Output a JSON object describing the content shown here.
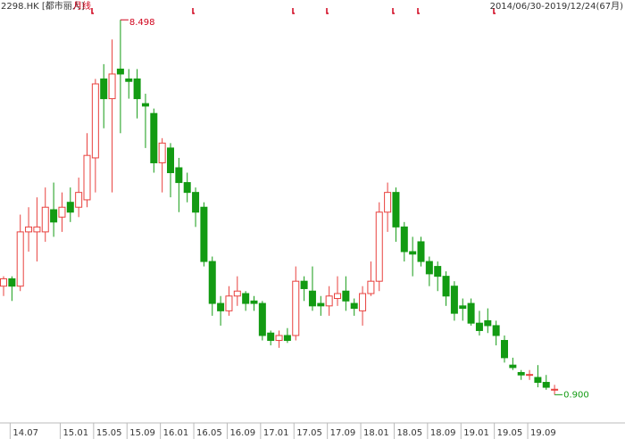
{
  "chart_data": {
    "type": "candlestick",
    "title": "2298.HK [都市丽人]",
    "subtitle": "月线",
    "range_label": "2014/06/30-2019/12/24(67月)",
    "up_color": "#e8413e",
    "down_color": "#139b13",
    "ylim": [
      0.4,
      8.9
    ],
    "categories": [
      null,
      "14.07",
      null,
      null,
      null,
      null,
      null,
      "15.01",
      null,
      null,
      null,
      "15.05",
      null,
      null,
      null,
      "15.09",
      null,
      null,
      null,
      "16.01",
      null,
      null,
      null,
      "16.05",
      null,
      null,
      null,
      "16.09",
      null,
      null,
      null,
      "17.01",
      null,
      null,
      null,
      "17.05",
      null,
      null,
      null,
      "17.09",
      null,
      null,
      null,
      "18.01",
      null,
      null,
      null,
      "18.05",
      null,
      null,
      null,
      "18.09",
      null,
      null,
      null,
      "19.01",
      null,
      null,
      null,
      "19.05",
      null,
      null,
      null,
      "19.09",
      null,
      null,
      null
    ],
    "open": [
      3.1,
      3.25,
      3.1,
      4.2,
      4.2,
      4.2,
      4.65,
      4.5,
      4.8,
      4.7,
      4.85,
      5.7,
      7.3,
      6.9,
      7.5,
      7.3,
      7.3,
      6.8,
      6.6,
      5.6,
      5.9,
      5.5,
      5.2,
      5.0,
      4.7,
      3.6,
      2.75,
      2.6,
      2.9,
      2.95,
      2.8,
      2.75,
      2.15,
      2.0,
      2.1,
      2.1,
      3.2,
      3.0,
      2.75,
      2.7,
      2.85,
      3.0,
      2.75,
      2.6,
      2.95,
      3.2,
      4.6,
      5.0,
      4.3,
      3.8,
      4.0,
      3.6,
      3.5,
      3.3,
      3.1,
      2.7,
      2.75,
      2.35,
      2.4,
      2.3,
      2.0,
      1.5,
      1.35,
      1.3,
      1.25,
      1.15,
      1.0
    ],
    "high": [
      3.3,
      3.3,
      4.55,
      4.7,
      4.9,
      5.1,
      5.2,
      5.0,
      5.1,
      5.3,
      6.2,
      7.3,
      7.6,
      8.1,
      8.498,
      7.5,
      7.5,
      7.0,
      6.7,
      6.1,
      6.0,
      5.7,
      5.4,
      5.1,
      4.8,
      3.7,
      2.9,
      3.1,
      3.3,
      3.0,
      2.9,
      2.8,
      2.2,
      2.2,
      2.25,
      3.5,
      3.3,
      3.5,
      2.9,
      3.1,
      3.3,
      3.3,
      2.85,
      3.1,
      3.6,
      4.8,
      5.2,
      5.1,
      4.4,
      4.1,
      4.1,
      3.7,
      3.6,
      3.4,
      3.2,
      2.85,
      2.85,
      2.6,
      2.65,
      2.4,
      2.1,
      1.65,
      1.4,
      1.4,
      1.5,
      1.3,
      1.1
    ],
    "low": [
      2.9,
      2.8,
      3.0,
      3.8,
      3.6,
      4.0,
      4.1,
      4.2,
      4.4,
      4.5,
      4.7,
      5.0,
      6.3,
      5.0,
      6.2,
      6.9,
      6.5,
      5.9,
      5.4,
      5.0,
      4.9,
      4.6,
      4.8,
      4.3,
      3.5,
      2.5,
      2.3,
      2.5,
      2.7,
      2.6,
      2.6,
      2.0,
      1.9,
      1.85,
      1.95,
      2.0,
      2.8,
      2.6,
      2.5,
      2.5,
      2.7,
      2.6,
      2.5,
      2.3,
      2.9,
      3.0,
      4.2,
      4.0,
      3.6,
      3.3,
      3.5,
      3.1,
      3.0,
      2.7,
      2.4,
      2.4,
      2.3,
      2.1,
      2.15,
      1.9,
      1.55,
      1.4,
      1.2,
      1.2,
      1.05,
      1.0,
      0.9
    ],
    "close": [
      3.25,
      3.1,
      4.2,
      4.3,
      4.3,
      4.7,
      4.4,
      4.7,
      4.6,
      5.0,
      5.75,
      7.2,
      6.9,
      7.4,
      7.4,
      7.25,
      6.9,
      6.75,
      5.6,
      6.0,
      5.4,
      5.2,
      5.0,
      4.6,
      3.6,
      2.75,
      2.6,
      2.9,
      3.0,
      2.75,
      2.75,
      2.1,
      2.0,
      2.1,
      2.0,
      3.2,
      3.05,
      2.7,
      2.7,
      2.9,
      2.95,
      2.8,
      2.65,
      2.95,
      3.2,
      4.6,
      5.0,
      4.3,
      3.8,
      3.75,
      3.6,
      3.35,
      3.3,
      2.9,
      2.55,
      2.65,
      2.35,
      2.2,
      2.3,
      2.1,
      1.65,
      1.45,
      1.3,
      1.31,
      1.15,
      1.05,
      1.01
    ],
    "annotations": [
      {
        "label": "8.498",
        "value": 8.498,
        "color": "#d0021b"
      },
      {
        "label": "0.900",
        "value": 0.9,
        "color": "#139b13"
      }
    ]
  }
}
